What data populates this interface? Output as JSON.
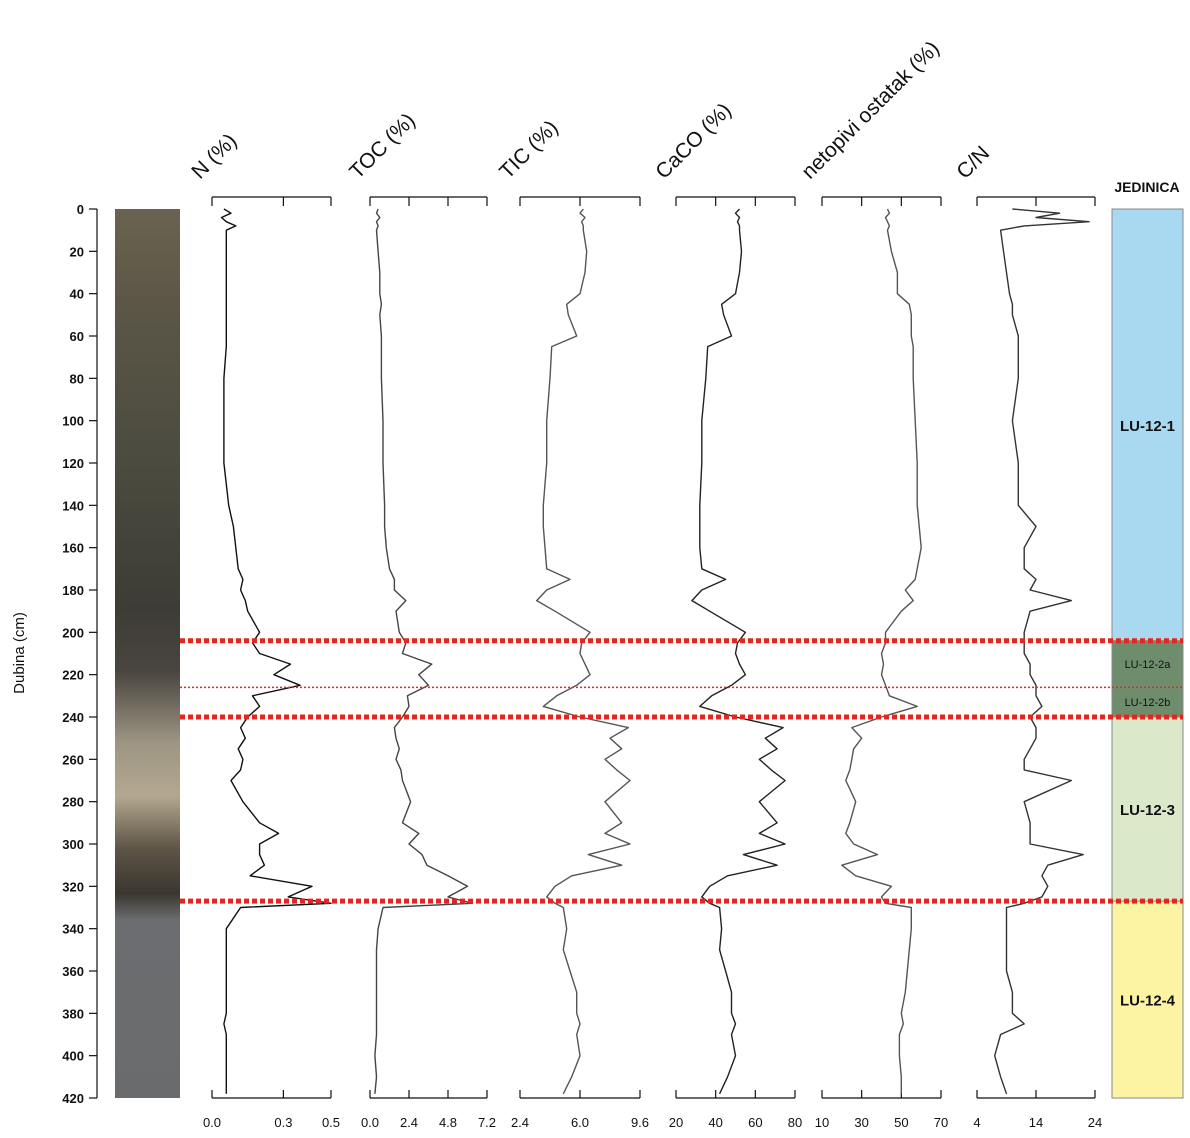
{
  "chart_data": {
    "type": "stratigraphic-log",
    "ylabel": "Dubina (cm)",
    "ylim": [
      0,
      420
    ],
    "yticks": [
      0,
      20,
      40,
      60,
      80,
      100,
      120,
      140,
      160,
      180,
      200,
      220,
      240,
      260,
      280,
      300,
      320,
      340,
      360,
      380,
      400,
      420
    ],
    "units_header": "JEDINICA",
    "units": [
      {
        "label": "LU-12-1",
        "top": 0,
        "bottom": 204,
        "color": "#a9d9f1"
      },
      {
        "label": "LU-12-2a",
        "top": 204,
        "bottom": 226,
        "color": "#6e8d6c"
      },
      {
        "label": "LU-12-2b",
        "top": 226,
        "bottom": 240,
        "color": "#6e8d6c"
      },
      {
        "label": "LU-12-3",
        "top": 240,
        "bottom": 327,
        "color": "#dbe8c9"
      },
      {
        "label": "LU-12-4",
        "top": 327,
        "bottom": 420,
        "color": "#fdf4a3"
      }
    ],
    "boundaries": [
      204,
      240,
      327
    ],
    "sub_boundaries": [
      226
    ],
    "boundary_color": "#e5261f",
    "panels": [
      {
        "type": "line",
        "title": "N (%)",
        "color": "#111111",
        "xlim": [
          0,
          0.5
        ],
        "xticks": [
          {
            "value": 0,
            "label": "0.0"
          },
          0.3,
          0.5
        ],
        "depth": [
          0,
          2,
          4,
          6,
          8,
          10,
          20,
          30,
          40,
          45,
          50,
          60,
          65,
          80,
          100,
          120,
          140,
          150,
          160,
          170,
          175,
          180,
          185,
          190,
          200,
          205,
          210,
          215,
          220,
          225,
          230,
          235,
          240,
          245,
          250,
          255,
          260,
          265,
          270,
          280,
          290,
          295,
          300,
          305,
          310,
          315,
          320,
          325,
          328,
          330,
          340,
          350,
          360,
          370,
          380,
          385,
          390,
          400,
          410,
          418
        ],
        "values": [
          0.05,
          0.08,
          0.04,
          0.06,
          0.1,
          0.06,
          0.06,
          0.06,
          0.06,
          0.06,
          0.06,
          0.06,
          0.06,
          0.05,
          0.05,
          0.05,
          0.07,
          0.09,
          0.1,
          0.11,
          0.13,
          0.12,
          0.14,
          0.15,
          0.2,
          0.17,
          0.2,
          0.33,
          0.26,
          0.37,
          0.17,
          0.2,
          0.15,
          0.12,
          0.14,
          0.11,
          0.13,
          0.12,
          0.08,
          0.13,
          0.2,
          0.28,
          0.2,
          0.2,
          0.22,
          0.16,
          0.42,
          0.32,
          0.5,
          0.12,
          0.06,
          0.06,
          0.06,
          0.06,
          0.06,
          0.05,
          0.06,
          0.06,
          0.06,
          0.06
        ]
      },
      {
        "type": "line",
        "title": "TOC (%)",
        "color": "#444444",
        "xlim": [
          0,
          7.2
        ],
        "xticks": [
          {
            "value": 0,
            "label": "0.0"
          },
          2.4,
          4.8,
          7.2
        ],
        "depth": [
          0,
          2,
          4,
          6,
          8,
          10,
          20,
          30,
          40,
          45,
          50,
          60,
          65,
          80,
          100,
          120,
          140,
          150,
          160,
          170,
          175,
          180,
          185,
          190,
          200,
          205,
          210,
          215,
          220,
          225,
          230,
          235,
          240,
          245,
          250,
          255,
          260,
          265,
          270,
          280,
          290,
          295,
          300,
          305,
          310,
          315,
          320,
          325,
          328,
          330,
          340,
          350,
          360,
          370,
          380,
          385,
          390,
          400,
          410,
          418
        ],
        "values": [
          0.5,
          0.4,
          0.6,
          0.4,
          0.5,
          0.4,
          0.5,
          0.6,
          0.6,
          0.7,
          0.6,
          0.7,
          0.7,
          0.7,
          0.8,
          0.8,
          0.9,
          0.9,
          1.0,
          1.2,
          1.5,
          1.5,
          2.2,
          1.6,
          1.8,
          2.2,
          2.0,
          3.8,
          3.0,
          3.6,
          2.3,
          2.4,
          2.0,
          1.5,
          1.6,
          1.8,
          1.6,
          1.9,
          2.0,
          2.5,
          2.0,
          3.0,
          2.4,
          3.2,
          3.5,
          4.8,
          6.0,
          4.8,
          6.3,
          0.8,
          0.5,
          0.4,
          0.4,
          0.4,
          0.4,
          0.4,
          0.4,
          0.3,
          0.4,
          0.3
        ]
      },
      {
        "type": "line",
        "title": "TIC (%)",
        "color": "#555555",
        "xlim": [
          2.4,
          9.6
        ],
        "xticks": [
          2.4,
          {
            "value": 6,
            "label": "6.0"
          },
          9.6
        ],
        "depth": [
          0,
          2,
          4,
          6,
          8,
          10,
          20,
          30,
          40,
          45,
          50,
          60,
          65,
          80,
          100,
          120,
          140,
          150,
          160,
          170,
          175,
          180,
          185,
          190,
          200,
          205,
          210,
          215,
          220,
          225,
          230,
          235,
          240,
          245,
          250,
          255,
          260,
          265,
          270,
          280,
          290,
          295,
          300,
          305,
          310,
          315,
          320,
          325,
          328,
          330,
          340,
          350,
          360,
          370,
          380,
          385,
          390,
          400,
          410,
          418
        ],
        "values": [
          6.2,
          6.0,
          6.3,
          6.1,
          6.2,
          6.2,
          6.4,
          6.3,
          6.0,
          5.2,
          5.3,
          5.8,
          4.3,
          4.2,
          4.0,
          4.0,
          3.8,
          3.8,
          3.9,
          4.0,
          5.4,
          4.0,
          3.4,
          4.5,
          6.6,
          6.1,
          6.0,
          6.3,
          6.6,
          5.8,
          4.6,
          3.8,
          6.0,
          8.9,
          7.8,
          8.5,
          7.5,
          8.2,
          9.0,
          7.5,
          8.5,
          7.5,
          9.0,
          6.5,
          8.5,
          5.5,
          4.5,
          4.0,
          4.5,
          5.0,
          5.2,
          5.0,
          5.4,
          5.8,
          5.8,
          6.0,
          5.8,
          6.0,
          5.5,
          5.0
        ]
      },
      {
        "type": "line",
        "title": "CaCO (%)",
        "color": "#222222",
        "xlim": [
          20,
          80
        ],
        "xticks": [
          20,
          40,
          60,
          80
        ],
        "depth": [
          0,
          2,
          4,
          6,
          8,
          10,
          20,
          30,
          40,
          45,
          50,
          60,
          65,
          80,
          100,
          120,
          140,
          150,
          160,
          170,
          175,
          180,
          185,
          190,
          200,
          205,
          210,
          215,
          220,
          225,
          230,
          235,
          240,
          245,
          250,
          255,
          260,
          265,
          270,
          280,
          290,
          295,
          300,
          305,
          310,
          315,
          320,
          325,
          328,
          330,
          340,
          350,
          360,
          370,
          380,
          385,
          390,
          400,
          410,
          418
        ],
        "values": [
          52,
          50,
          52,
          51,
          52,
          52,
          53,
          52,
          50,
          43,
          44,
          48,
          36,
          35,
          33,
          33,
          32,
          32,
          32,
          33,
          45,
          33,
          28,
          37,
          55,
          51,
          50,
          52,
          55,
          48,
          38,
          32,
          50,
          74,
          65,
          71,
          62,
          68,
          75,
          62,
          71,
          62,
          75,
          54,
          71,
          46,
          37,
          33,
          37,
          42,
          43,
          42,
          45,
          48,
          48,
          50,
          48,
          50,
          46,
          42
        ]
      },
      {
        "type": "line",
        "title": "netopivi ostatak (%)",
        "color": "#555555",
        "xlim": [
          10,
          70
        ],
        "xticks": [
          10,
          30,
          50,
          70
        ],
        "depth": [
          0,
          2,
          4,
          6,
          8,
          10,
          20,
          30,
          40,
          45,
          50,
          60,
          65,
          80,
          100,
          120,
          140,
          150,
          160,
          170,
          175,
          180,
          185,
          190,
          200,
          205,
          210,
          215,
          220,
          225,
          230,
          235,
          240,
          245,
          250,
          255,
          260,
          265,
          270,
          280,
          290,
          295,
          300,
          305,
          310,
          315,
          320,
          325,
          328,
          330,
          340,
          350,
          360,
          370,
          380,
          385,
          390,
          400,
          410,
          418
        ],
        "values": [
          43,
          44,
          42,
          43,
          44,
          43,
          45,
          48,
          48,
          54,
          55,
          55,
          56,
          56,
          57,
          58,
          58,
          59,
          60,
          58,
          57,
          52,
          56,
          50,
          42,
          42,
          40,
          41,
          40,
          42,
          44,
          58,
          40,
          25,
          30,
          26,
          25,
          24,
          22,
          27,
          24,
          22,
          26,
          38,
          20,
          27,
          45,
          40,
          42,
          55,
          55,
          54,
          53,
          52,
          50,
          51,
          49,
          49,
          50,
          50
        ]
      },
      {
        "type": "line",
        "title": "C/N",
        "color": "#333333",
        "xlim": [
          4,
          24
        ],
        "xticks": [
          4,
          14,
          24
        ],
        "depth": [
          0,
          2,
          4,
          6,
          8,
          10,
          20,
          30,
          40,
          45,
          50,
          60,
          65,
          80,
          100,
          120,
          140,
          150,
          160,
          170,
          175,
          180,
          185,
          190,
          200,
          205,
          210,
          215,
          220,
          225,
          230,
          235,
          240,
          245,
          250,
          255,
          260,
          265,
          270,
          280,
          290,
          295,
          300,
          305,
          310,
          315,
          320,
          325,
          328,
          330,
          340,
          350,
          360,
          370,
          380,
          385,
          390,
          400,
          410,
          418
        ],
        "values": [
          10,
          18,
          14,
          23,
          12,
          8,
          8.5,
          9,
          9.5,
          10,
          10,
          11,
          11,
          11,
          10,
          11,
          11,
          14,
          12,
          12,
          14,
          13,
          20,
          13,
          12,
          12,
          12,
          13,
          13,
          14,
          14,
          15,
          13,
          14,
          14,
          13,
          12,
          12,
          20,
          12,
          13,
          13,
          13,
          22,
          16,
          15,
          16,
          15,
          12,
          9,
          9,
          9,
          9,
          10,
          10,
          12,
          8,
          7,
          8,
          9
        ]
      }
    ]
  }
}
